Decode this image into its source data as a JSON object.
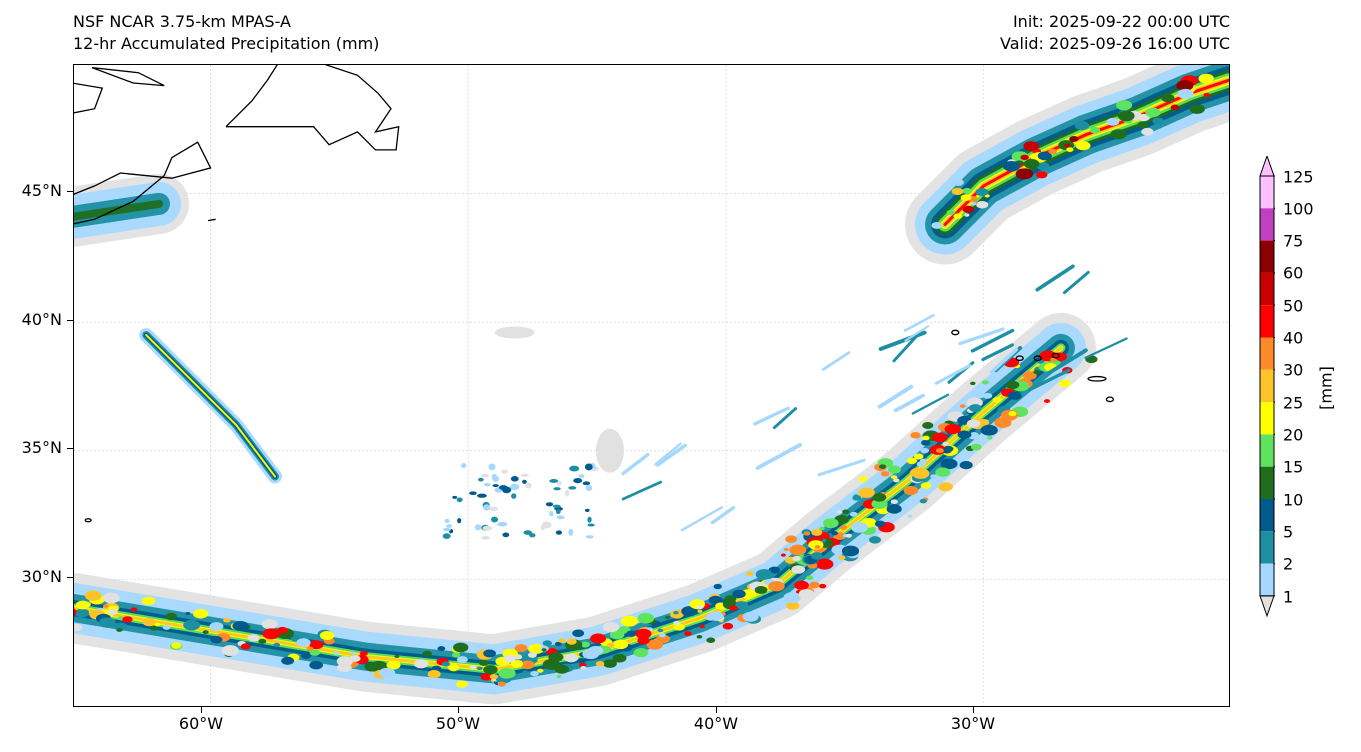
{
  "header": {
    "model": "NSF NCAR 3.75-km MPAS-A",
    "field": "12-hr Accumulated Precipitation (mm)",
    "init": "Init: 2025-09-22 00:00 UTC",
    "valid": "Valid: 2025-09-26 16:00 UTC"
  },
  "map": {
    "lat_labels": [
      "45°N",
      "40°N",
      "35°N",
      "30°N"
    ],
    "lon_labels": [
      "60°W",
      "50°W",
      "40°W",
      "30°W"
    ],
    "lat_values": [
      45,
      40,
      35,
      30
    ],
    "lon_values": [
      -60,
      -50,
      -40,
      -30
    ],
    "lon_range": [
      -65.3,
      -20.4
    ],
    "lat_range": [
      25,
      50
    ],
    "coastline_color": "#000000",
    "gridline_color": "#d8d8d8"
  },
  "colorbar": {
    "units": "[mm]",
    "levels": [
      "1",
      "2",
      "5",
      "10",
      "15",
      "20",
      "25",
      "30",
      "40",
      "50",
      "60",
      "75",
      "100",
      "125"
    ],
    "colors": [
      "#e1e1e1",
      "#a6d8ff",
      "#1c8fa3",
      "#005a8c",
      "#1e6e1e",
      "#5ee35e",
      "#ffff00",
      "#ffc32a",
      "#ff8a2a",
      "#ff0000",
      "#c80000",
      "#8c0000",
      "#c040c0",
      "#ffc0ff"
    ],
    "extend": "both"
  },
  "precip_bands": [
    {
      "name": "atlantic-frontal-band",
      "path": [
        [
          -66,
          29
        ],
        [
          -60,
          28
        ],
        [
          -54,
          27
        ],
        [
          -49,
          26.5
        ],
        [
          -45,
          27.2
        ],
        [
          -41,
          28.5
        ],
        [
          -38,
          29.8
        ],
        [
          -36,
          31.5
        ],
        [
          -33,
          33.8
        ],
        [
          -30,
          36.5
        ],
        [
          -27,
          39
        ]
      ]
    },
    {
      "name": "northeast-comma-band",
      "path": [
        [
          -31.5,
          43.8
        ],
        [
          -30,
          45.3
        ],
        [
          -28,
          46.4
        ],
        [
          -26,
          47.3
        ],
        [
          -24,
          48
        ],
        [
          -22,
          48.9
        ],
        [
          -20.5,
          49.4
        ]
      ]
    },
    {
      "name": "seaboard-band",
      "path": [
        [
          -62.5,
          39.5
        ],
        [
          -61,
          38
        ],
        [
          -59,
          36
        ],
        [
          -57.5,
          34
        ]
      ]
    },
    {
      "name": "nova-scotia-band",
      "path": [
        [
          -66,
          44
        ],
        [
          -64,
          44.3
        ],
        [
          -62,
          44.6
        ]
      ]
    }
  ]
}
